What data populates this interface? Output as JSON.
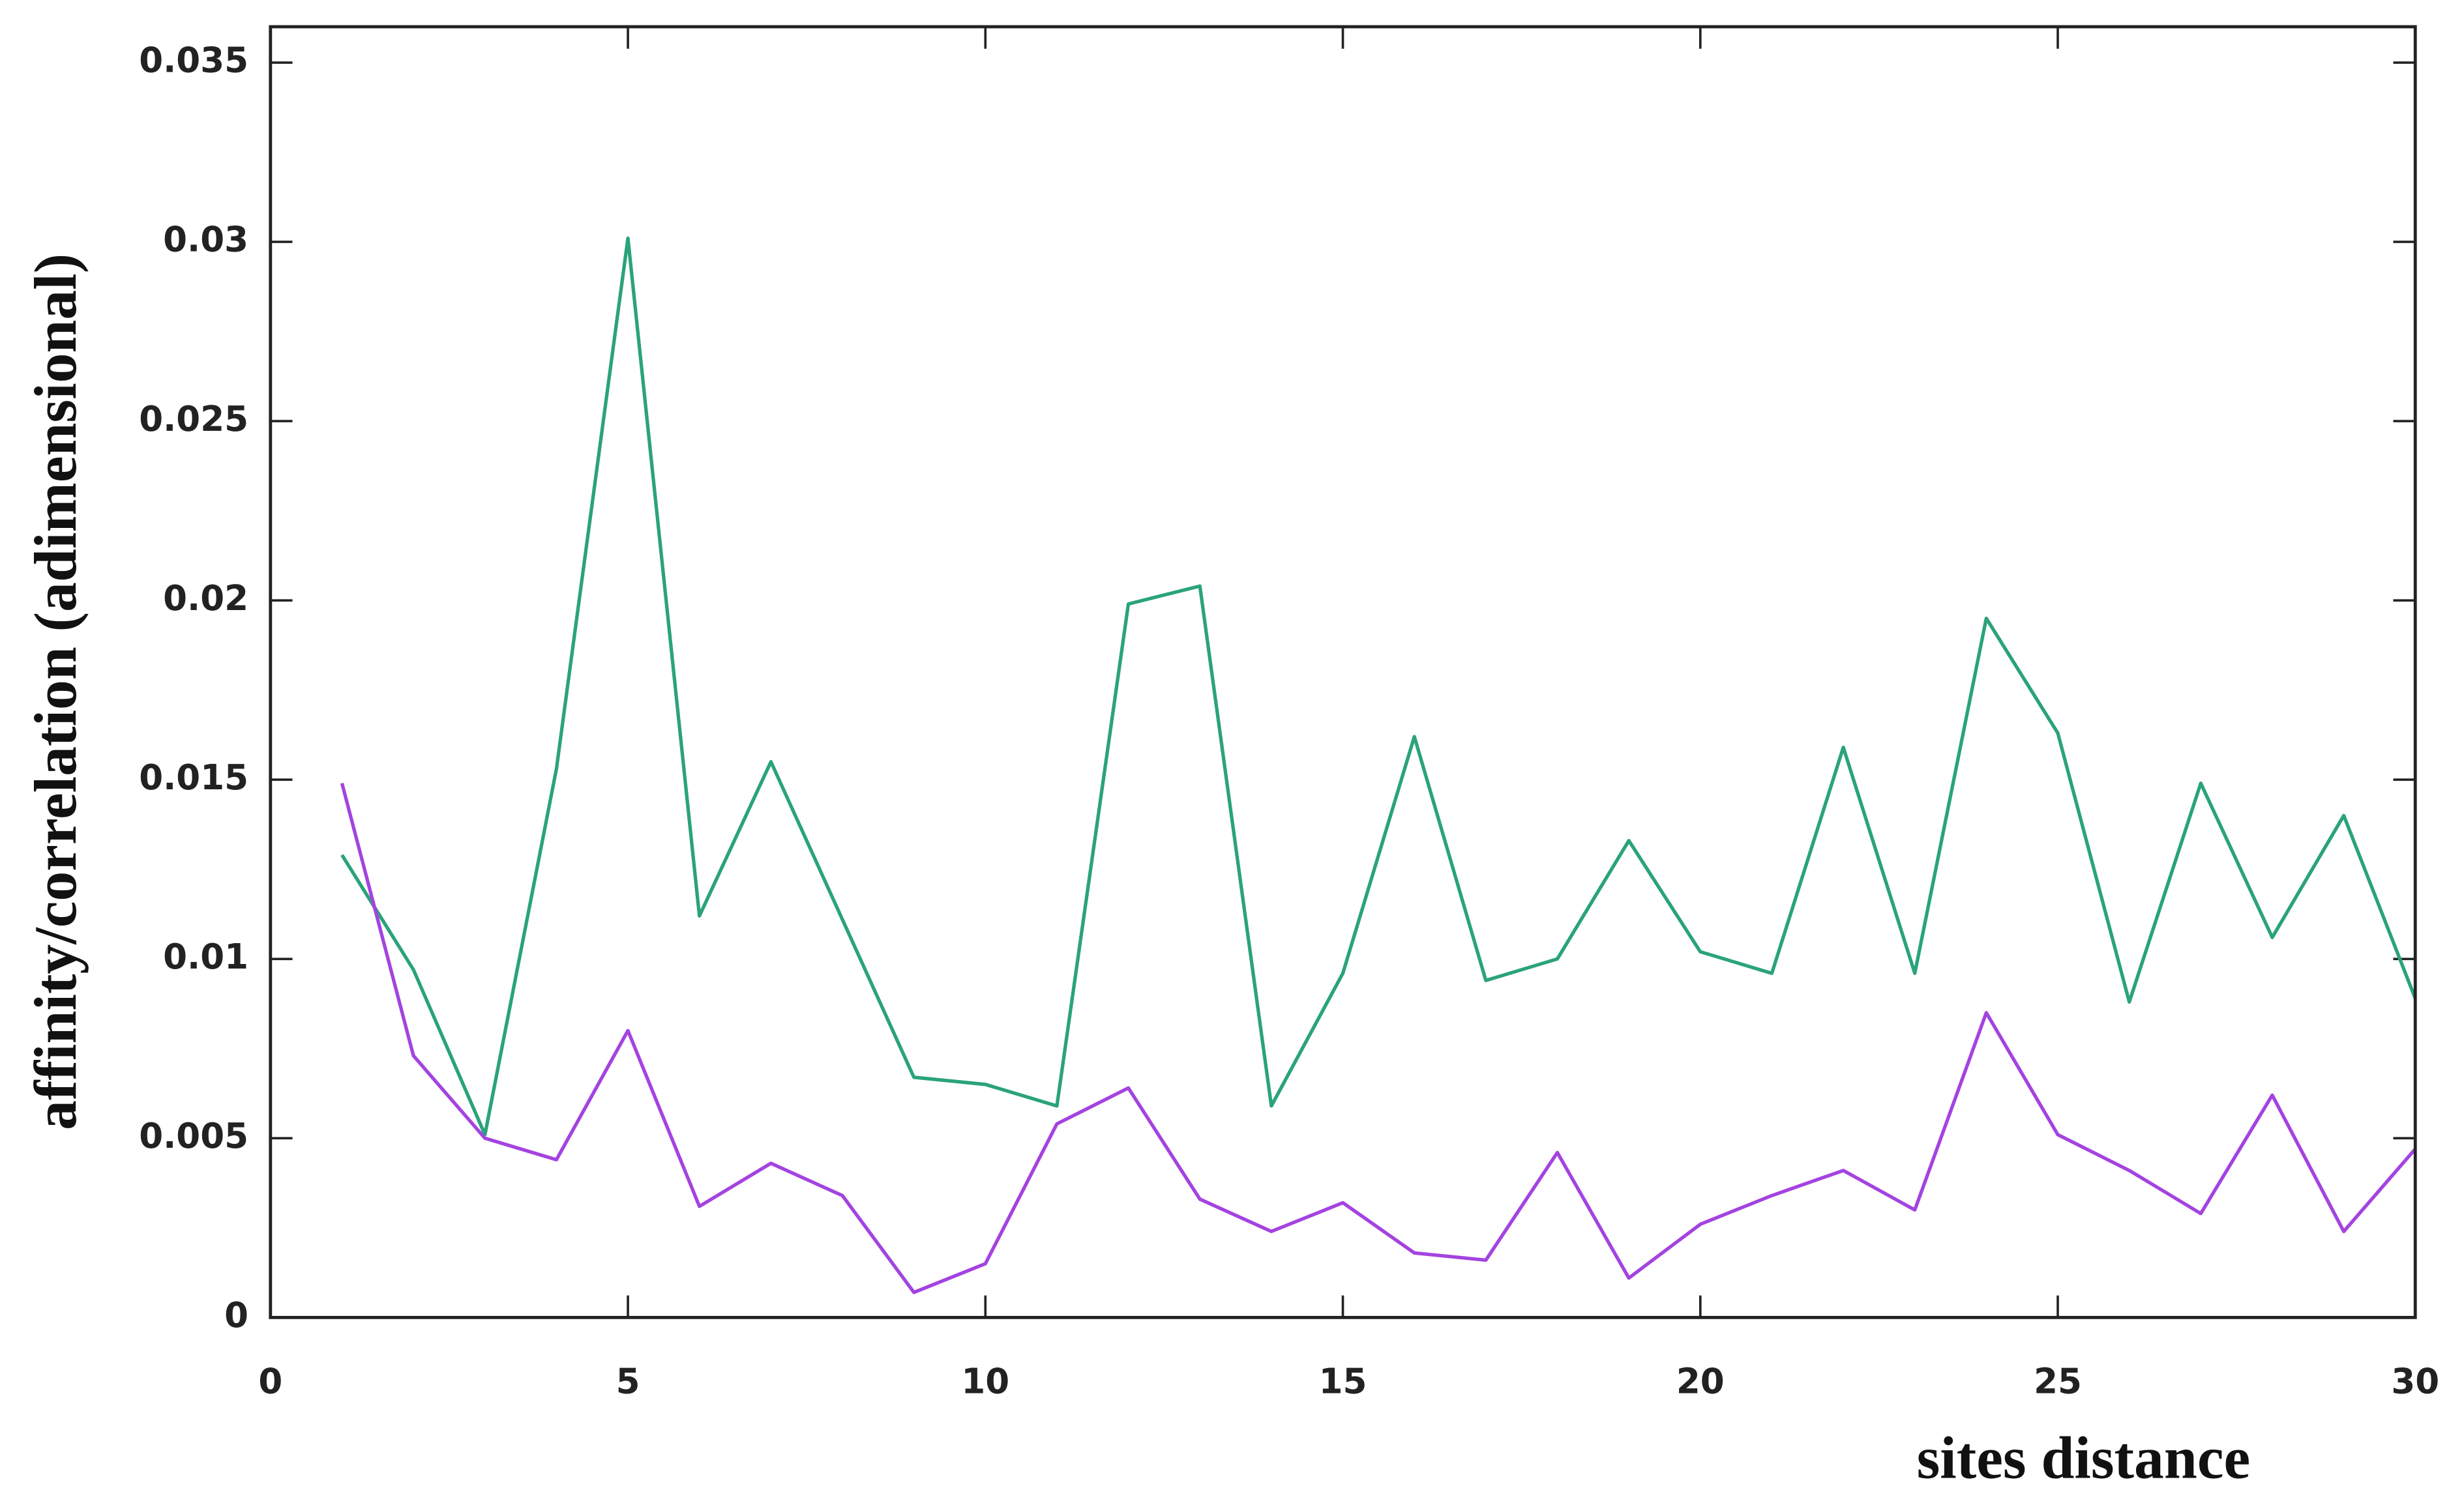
{
  "chart_data": {
    "type": "line",
    "x_label": "sites distance",
    "y_label": "affinity/correlation (adimensional)",
    "x": [
      1,
      2,
      3,
      4,
      5,
      6,
      7,
      8,
      9,
      10,
      11,
      12,
      13,
      14,
      15,
      16,
      17,
      18,
      19,
      20,
      21,
      22,
      23,
      24,
      25,
      26,
      27,
      28,
      29,
      30
    ],
    "series": [
      {
        "color": "#2aa37a",
        "values": [
          0.0129,
          0.0097,
          0.0051,
          0.0153,
          0.0301,
          0.0112,
          0.0155,
          0.0111,
          0.0067,
          0.0065,
          0.0059,
          0.0199,
          0.0204,
          0.0059,
          0.0096,
          0.0162,
          0.0094,
          0.01,
          0.0133,
          0.0102,
          0.0096,
          0.0159,
          0.0096,
          0.0195,
          0.0163,
          0.0088,
          0.0149,
          0.0106,
          0.014,
          0.0089
        ]
      },
      {
        "color": "#a443e0",
        "values": [
          0.0149,
          0.0073,
          0.005,
          0.0044,
          0.008,
          0.0031,
          0.0043,
          0.0034,
          0.0007,
          0.0015,
          0.0054,
          0.0064,
          0.0033,
          0.0024,
          0.0032,
          0.0018,
          0.0016,
          0.0046,
          0.0011,
          0.0026,
          0.0034,
          0.0041,
          0.003,
          0.0085,
          0.0051,
          0.0041,
          0.0029,
          0.0062,
          0.0024,
          0.0047
        ]
      }
    ],
    "xlim": [
      0,
      30
    ],
    "xticks": [
      0,
      5,
      10,
      15,
      20,
      25,
      30
    ],
    "ylim": [
      0,
      0.036
    ],
    "yticks": [
      0,
      0.005,
      0.01,
      0.015,
      0.02,
      0.025,
      0.03,
      0.035
    ]
  }
}
